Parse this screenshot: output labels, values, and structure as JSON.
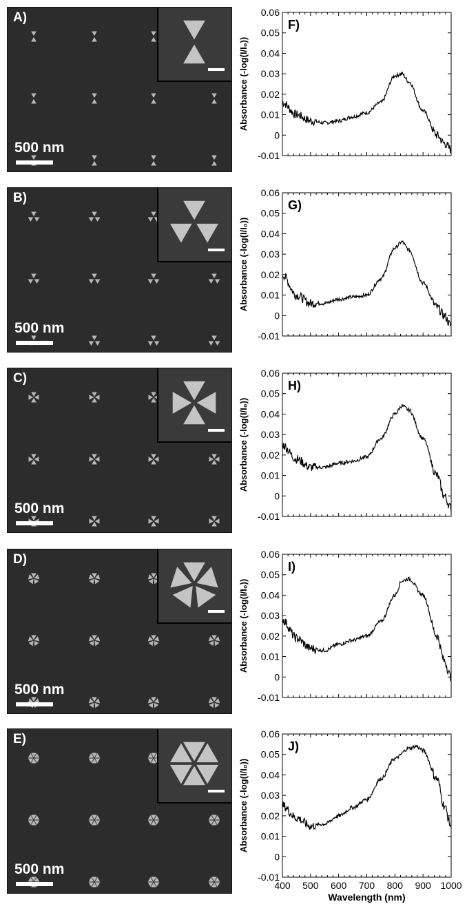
{
  "sem_panels": [
    {
      "letter": "A)",
      "scale_label": "500 nm",
      "particle_icon": "dimer-triangle-icon"
    },
    {
      "letter": "B)",
      "scale_label": "500 nm",
      "particle_icon": "trimer-triangle-icon"
    },
    {
      "letter": "C)",
      "scale_label": "500 nm",
      "particle_icon": "tetramer-triangle-icon"
    },
    {
      "letter": "D)",
      "scale_label": "500 nm",
      "particle_icon": "pentamer-triangle-icon"
    },
    {
      "letter": "E)",
      "scale_label": "500 nm",
      "particle_icon": "hexamer-triangle-icon"
    }
  ],
  "chart_data": [
    {
      "type": "line",
      "panel_label": "F)",
      "x": [
        400,
        450,
        500,
        550,
        600,
        650,
        700,
        750,
        800,
        825,
        850,
        900,
        950,
        975,
        1000
      ],
      "y": [
        0.016,
        0.01,
        0.007,
        0.006,
        0.007,
        0.009,
        0.011,
        0.016,
        0.029,
        0.03,
        0.026,
        0.012,
        0.0,
        -0.004,
        -0.007
      ],
      "ylabel": "Absorbance (-log(I/I₀))",
      "xlim": [
        400,
        1000
      ],
      "ylim": [
        -0.01,
        0.06
      ],
      "yticks": [
        "-0.01",
        "0",
        "0.01",
        "0.02",
        "0.03",
        "0.04",
        "0.05",
        "0.06"
      ]
    },
    {
      "type": "line",
      "panel_label": "G)",
      "x": [
        400,
        450,
        500,
        550,
        600,
        650,
        700,
        750,
        800,
        825,
        850,
        900,
        950,
        975,
        1000
      ],
      "y": [
        0.02,
        0.01,
        0.006,
        0.006,
        0.008,
        0.009,
        0.01,
        0.018,
        0.033,
        0.036,
        0.032,
        0.016,
        0.004,
        0.0,
        -0.005
      ],
      "ylabel": "Absorbance (-log(I/I₀))",
      "xlim": [
        400,
        1000
      ],
      "ylim": [
        -0.01,
        0.06
      ],
      "yticks": [
        "-0.01",
        "0",
        "0.01",
        "0.02",
        "0.03",
        "0.04",
        "0.05",
        "0.06"
      ]
    },
    {
      "type": "line",
      "panel_label": "H)",
      "x": [
        400,
        450,
        500,
        550,
        600,
        650,
        700,
        750,
        800,
        825,
        850,
        900,
        950,
        975,
        1000
      ],
      "y": [
        0.025,
        0.018,
        0.014,
        0.014,
        0.016,
        0.017,
        0.019,
        0.028,
        0.04,
        0.044,
        0.042,
        0.028,
        0.01,
        0.0,
        -0.006
      ],
      "ylabel": "Absorbance (-log(I/I₀))",
      "xlim": [
        400,
        1000
      ],
      "ylim": [
        -0.01,
        0.06
      ],
      "yticks": [
        "-0.01",
        "0",
        "0.01",
        "0.02",
        "0.03",
        "0.04",
        "0.05",
        "0.06"
      ]
    },
    {
      "type": "line",
      "panel_label": "I)",
      "x": [
        400,
        450,
        500,
        550,
        600,
        650,
        700,
        750,
        800,
        825,
        850,
        900,
        950,
        975,
        1000
      ],
      "y": [
        0.028,
        0.019,
        0.014,
        0.013,
        0.016,
        0.018,
        0.02,
        0.027,
        0.04,
        0.047,
        0.048,
        0.04,
        0.02,
        0.008,
        0.0
      ],
      "ylabel": "Absorbance (-log(I/I₀))",
      "xlim": [
        400,
        1000
      ],
      "ylim": [
        -0.01,
        0.06
      ],
      "yticks": [
        "-0.01",
        "0",
        "0.01",
        "0.02",
        "0.03",
        "0.04",
        "0.05",
        "0.06"
      ]
    },
    {
      "type": "line",
      "panel_label": "J)",
      "x": [
        400,
        450,
        500,
        550,
        600,
        650,
        700,
        750,
        800,
        850,
        875,
        900,
        950,
        975,
        1000
      ],
      "y": [
        0.025,
        0.019,
        0.015,
        0.016,
        0.02,
        0.024,
        0.028,
        0.038,
        0.048,
        0.053,
        0.054,
        0.052,
        0.038,
        0.025,
        0.015
      ],
      "ylabel": "Absorbance (-log(I/I₀))",
      "xlim": [
        400,
        1000
      ],
      "ylim": [
        -0.01,
        0.06
      ],
      "yticks": [
        "-0.01",
        "0",
        "0.01",
        "0.02",
        "0.03",
        "0.04",
        "0.05",
        "0.06"
      ],
      "xticks": [
        "400",
        "500",
        "600",
        "700",
        "800",
        "900",
        "1000"
      ],
      "xlabel": "Wavelength (nm)"
    }
  ]
}
